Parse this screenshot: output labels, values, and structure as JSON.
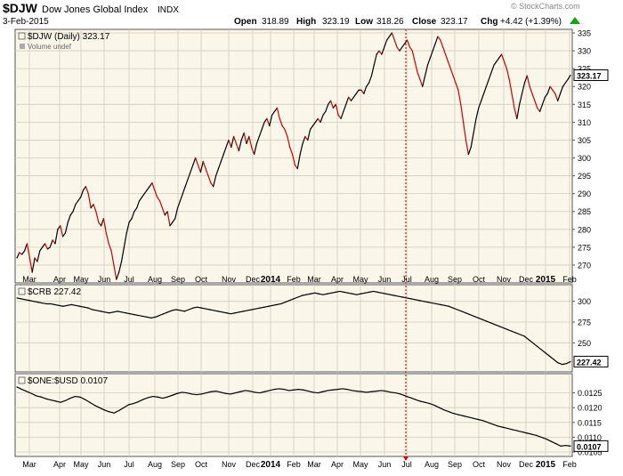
{
  "header": {
    "symbol": "$DJW",
    "name": "Dow Jones Global Index",
    "exchange": "INDX",
    "date": "3-Feb-2015",
    "open_label": "Open",
    "open": "318.89",
    "high_label": "High",
    "high": "323.19",
    "low_label": "Low",
    "low": "318.26",
    "close_label": "Close",
    "close": "323.17",
    "chg_label": "Chg",
    "chg": "+4.42 (+1.39%)",
    "up_icon": "up-triangle-icon",
    "watermark": "© StockCharts.com"
  },
  "colors": {
    "panel_bg": "#faf6ea",
    "up_line": "#000000",
    "down_line": "#cc0000",
    "grid": "#d2ccba",
    "marker": "#cc0000"
  },
  "chart_data": [
    {
      "type": "line",
      "title": "$DJW (Daily) 323.17",
      "subtitle": "Volume undef",
      "last_value_label": "323.17",
      "x_labels": [
        "Mar",
        "Apr",
        "May",
        "Jun",
        "Jul",
        "Aug",
        "Sep",
        "Oct",
        "Nov",
        "Dec",
        "2014",
        "Feb",
        "Mar",
        "Apr",
        "May",
        "Jun",
        "Jul",
        "Aug",
        "Sep",
        "Oct",
        "Nov",
        "Dec",
        "2015",
        "Feb"
      ],
      "yticks": [
        270,
        275,
        280,
        285,
        290,
        295,
        300,
        305,
        310,
        315,
        320,
        325,
        330,
        335
      ],
      "ylim": [
        265,
        336
      ],
      "grid": true,
      "series": [
        {
          "values": [
            272,
            273.5,
            273,
            274,
            276,
            272,
            268,
            272,
            271,
            274,
            275,
            276,
            274.5,
            275,
            277,
            276,
            280,
            281,
            278,
            279,
            282,
            284,
            285,
            287,
            288,
            289,
            291,
            292,
            290,
            286,
            287,
            285,
            282,
            281,
            283,
            279,
            276,
            274,
            270,
            266,
            268,
            271,
            275,
            279,
            282,
            283,
            285,
            286,
            288,
            289,
            290,
            291,
            292,
            293,
            291,
            289,
            288,
            286,
            284,
            285,
            281,
            282,
            283,
            286,
            288,
            290,
            292,
            294,
            296,
            298,
            300,
            298,
            296,
            299,
            297,
            295,
            293,
            292,
            295,
            297,
            299,
            301,
            303,
            305,
            303,
            306,
            304,
            302,
            305,
            307,
            304,
            306,
            303,
            301,
            304,
            306,
            308,
            310,
            311,
            309,
            312,
            313,
            314,
            311,
            309,
            308,
            306,
            303,
            301,
            298,
            297,
            301,
            304,
            306,
            305,
            308,
            309,
            310,
            311,
            310,
            312,
            313,
            315,
            316,
            314,
            315,
            312,
            311,
            313,
            315,
            317,
            316,
            317,
            318,
            319,
            319,
            318,
            320,
            321,
            323,
            326,
            329,
            330,
            329,
            331,
            333,
            334,
            335,
            333,
            331,
            330,
            331,
            332,
            333,
            331,
            330,
            327,
            324,
            322,
            320,
            323,
            326,
            328,
            330,
            332,
            334,
            333,
            331,
            329,
            327,
            325,
            323,
            321,
            319,
            315,
            310,
            305,
            301,
            303,
            307,
            311,
            314,
            316,
            318,
            320,
            322,
            324,
            326,
            327,
            328,
            329,
            327,
            325,
            322,
            318,
            314,
            311,
            315,
            318,
            321,
            323,
            320,
            318,
            316,
            314,
            313,
            315,
            317,
            318,
            320,
            319,
            318,
            316,
            318,
            320,
            321,
            322,
            323.17
          ]
        }
      ]
    },
    {
      "type": "line",
      "title": "$CRB 227.42",
      "last_value_label": "227.42",
      "yticks": [
        250,
        275,
        300
      ],
      "ylim": [
        215,
        320
      ],
      "grid": true,
      "series": [
        {
          "values": [
            304,
            303,
            302,
            301,
            300,
            299,
            298,
            297,
            297,
            296,
            295,
            294,
            295,
            296,
            295,
            294,
            293,
            292,
            290,
            289,
            288,
            287,
            286,
            287,
            288,
            287,
            286,
            285,
            284,
            283,
            282,
            281,
            280,
            281,
            283,
            285,
            287,
            289,
            290,
            289,
            288,
            290,
            292,
            293,
            292,
            291,
            290,
            289,
            288,
            287,
            286,
            285,
            286,
            287,
            288,
            289,
            290,
            291,
            292,
            293,
            294,
            295,
            296,
            297,
            299,
            301,
            303,
            305,
            307,
            308,
            309,
            310,
            309,
            308,
            309,
            310,
            311,
            312,
            311,
            310,
            309,
            308,
            309,
            310,
            311,
            312,
            311,
            310,
            309,
            308,
            307,
            306,
            305,
            304,
            303,
            302,
            301,
            300,
            299,
            298,
            297,
            296,
            295,
            294,
            292,
            290,
            288,
            286,
            284,
            282,
            280,
            278,
            276,
            274,
            272,
            270,
            268,
            266,
            264,
            262,
            260,
            258,
            254,
            250,
            246,
            242,
            238,
            234,
            230,
            226,
            224,
            225,
            227.42
          ]
        }
      ]
    },
    {
      "type": "line",
      "title": "$ONE:$USD 0.0107",
      "last_value_label": "0.0107",
      "yticks": [
        0.0105,
        0.011,
        0.0115,
        0.012,
        0.0125
      ],
      "ylim": [
        0.01035,
        0.01315
      ],
      "grid": true,
      "series": [
        {
          "values": [
            0.0127,
            0.01262,
            0.01255,
            0.01248,
            0.0124,
            0.01236,
            0.0123,
            0.01226,
            0.01222,
            0.01218,
            0.01224,
            0.01232,
            0.01238,
            0.01236,
            0.01228,
            0.01218,
            0.01208,
            0.012,
            0.01192,
            0.01186,
            0.01182,
            0.0119,
            0.012,
            0.0121,
            0.01214,
            0.0122,
            0.01228,
            0.01234,
            0.01238,
            0.01236,
            0.01232,
            0.01236,
            0.01242,
            0.01248,
            0.01252,
            0.0125,
            0.01246,
            0.01244,
            0.01246,
            0.0125,
            0.01254,
            0.01256,
            0.01252,
            0.01248,
            0.01246,
            0.0125,
            0.01254,
            0.01258,
            0.01256,
            0.01252,
            0.0125,
            0.01254,
            0.01258,
            0.01262,
            0.01264,
            0.01262,
            0.01258,
            0.0126,
            0.01262,
            0.0126,
            0.01256,
            0.01252,
            0.0125,
            0.01254,
            0.01258,
            0.0126,
            0.01262,
            0.01264,
            0.01262,
            0.01258,
            0.01256,
            0.01254,
            0.01252,
            0.01254,
            0.01256,
            0.01258,
            0.01256,
            0.01252,
            0.0125,
            0.01246,
            0.0124,
            0.01234,
            0.01228,
            0.01222,
            0.01218,
            0.01214,
            0.01208,
            0.012,
            0.01192,
            0.01186,
            0.0118,
            0.01176,
            0.01172,
            0.01168,
            0.01164,
            0.0116,
            0.01156,
            0.0115,
            0.01144,
            0.01138,
            0.01134,
            0.0113,
            0.01126,
            0.01122,
            0.01118,
            0.01114,
            0.0111,
            0.01106,
            0.011,
            0.01094,
            0.01086,
            0.01078,
            0.0107,
            0.01072,
            0.0107
          ]
        }
      ]
    }
  ]
}
